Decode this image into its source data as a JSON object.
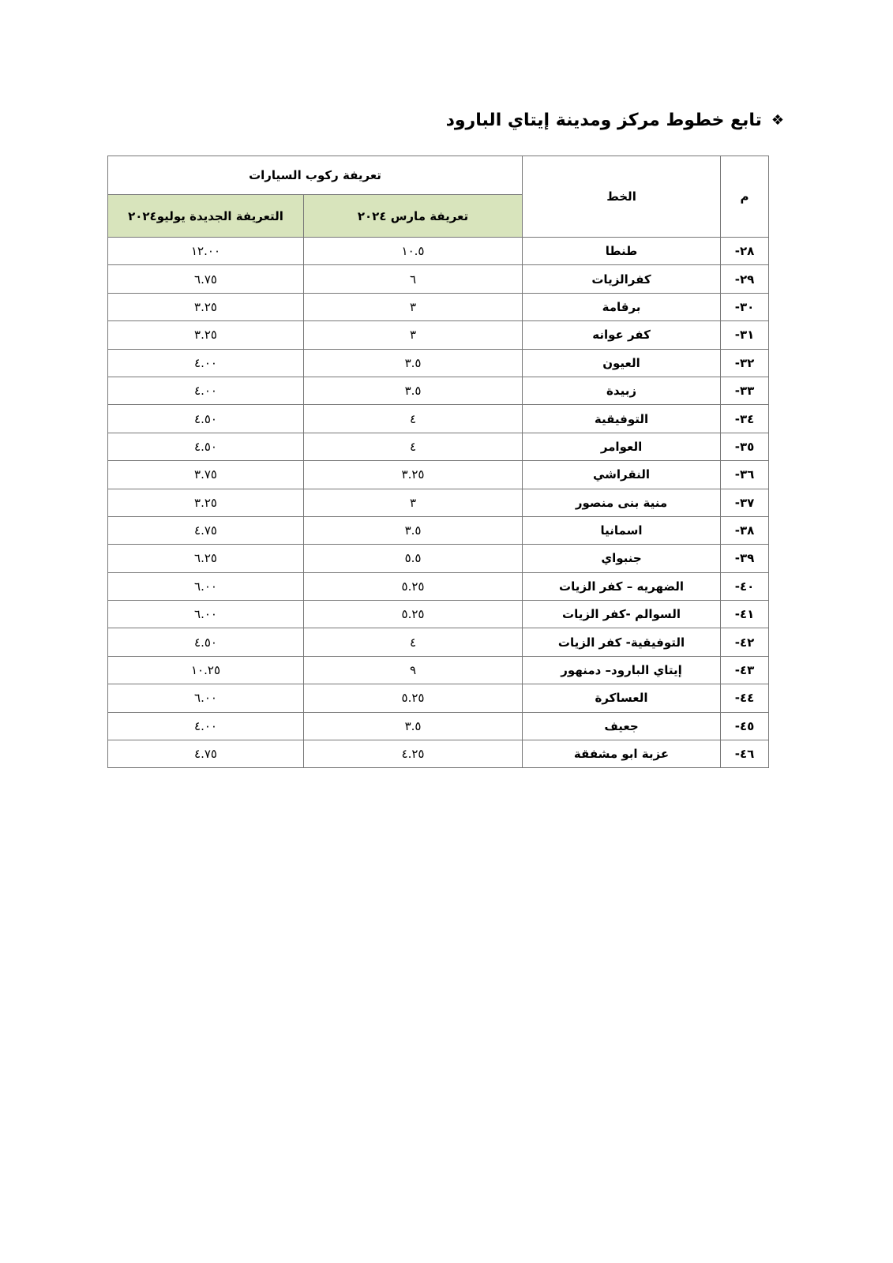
{
  "title": {
    "icon": "diamond-ornament-icon",
    "text": "تابع خطوط مركز ومدينة إيتاي البارود"
  },
  "table": {
    "headers": {
      "number": "م",
      "line": "الخط",
      "group": "تعريفة ركوب السيارات",
      "march": "تعريفة مارس ٢٠٢٤",
      "july": "التعريفة الجديدة يوليو٢٠٢٤"
    },
    "header_color": "#d8e4bc",
    "rows": [
      {
        "num": "-٢٨",
        "line": "طنطا",
        "march": "١٠.٥",
        "july": "١٢.٠٠"
      },
      {
        "num": "-٢٩",
        "line": "كفرالزيات",
        "march": "٦",
        "july": "٦.٧٥"
      },
      {
        "num": "-٣٠",
        "line": "برقامة",
        "march": "٣",
        "july": "٣.٢٥"
      },
      {
        "num": "-٣١",
        "line": "كفر عوانه",
        "march": "٣",
        "july": "٣.٢٥"
      },
      {
        "num": "-٣٢",
        "line": "العيون",
        "march": "٣.٥",
        "july": "٤.٠٠"
      },
      {
        "num": "-٣٣",
        "line": "زبيدة",
        "march": "٣.٥",
        "july": "٤.٠٠"
      },
      {
        "num": "-٣٤",
        "line": "التوفيقية",
        "march": "٤",
        "july": "٤.٥٠"
      },
      {
        "num": "-٣٥",
        "line": "العوامر",
        "march": "٤",
        "july": "٤.٥٠"
      },
      {
        "num": "-٣٦",
        "line": "النقراشي",
        "march": "٣.٢٥",
        "july": "٣.٧٥"
      },
      {
        "num": "-٣٧",
        "line": "منية بنى منصور",
        "march": "٣",
        "july": "٣.٢٥"
      },
      {
        "num": "-٣٨",
        "line": "اسمانيا",
        "march": "٣.٥",
        "july": "٤.٧٥"
      },
      {
        "num": "-٣٩",
        "line": "جنبواي",
        "march": "٥.٥",
        "july": "٦.٢٥"
      },
      {
        "num": "-٤٠",
        "line": "الضهريه – كفر الزيات",
        "march": "٥.٢٥",
        "july": "٦.٠٠"
      },
      {
        "num": "-٤١",
        "line": "السوالم -كفر الزيات",
        "march": "٥.٢٥",
        "july": "٦.٠٠"
      },
      {
        "num": "-٤٢",
        "line": "التوفيقية- كفر الزيات",
        "march": "٤",
        "july": "٤.٥٠"
      },
      {
        "num": "-٤٣",
        "line": "إيتاي البارود– دمنهور",
        "march": "٩",
        "july": "١٠.٢٥"
      },
      {
        "num": "-٤٤",
        "line": "العساكرة",
        "march": "٥.٢٥",
        "july": "٦.٠٠"
      },
      {
        "num": "-٤٥",
        "line": "جعيف",
        "march": "٣.٥",
        "july": "٤.٠٠"
      },
      {
        "num": "-٤٦",
        "line": "عزبة ابو مشفقة",
        "march": "٤.٢٥",
        "july": "٤.٧٥"
      }
    ]
  }
}
